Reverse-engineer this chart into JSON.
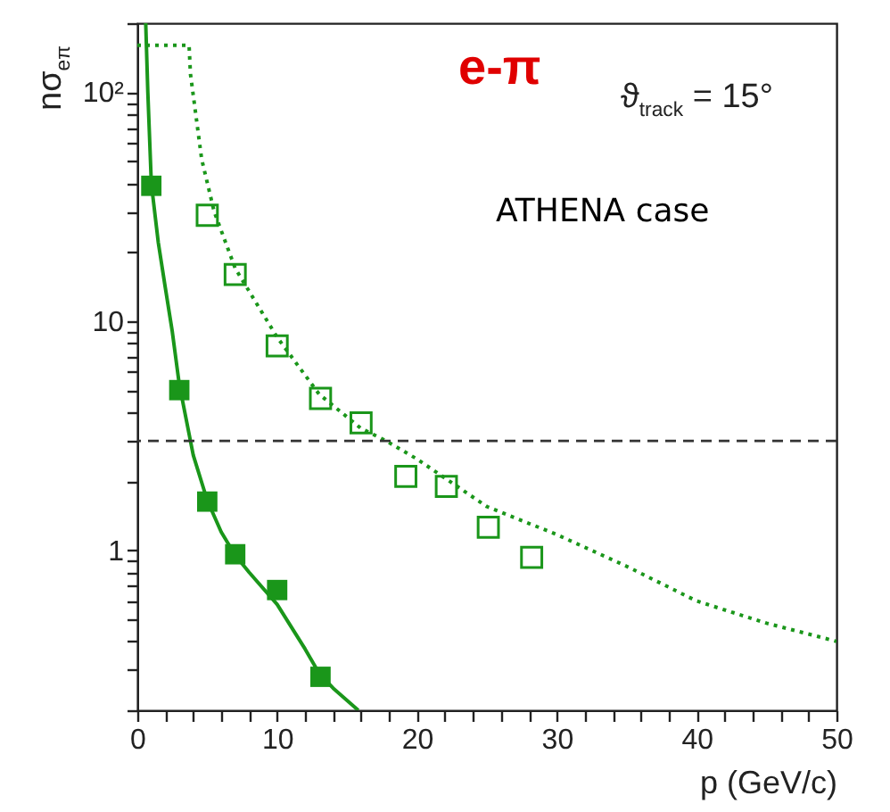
{
  "chart_data": {
    "type": "scatter",
    "xlabel": "p (GeV/c)",
    "ylabel": "nσ$_{eπ}$",
    "annotations": [
      "e-π",
      "ϑ$_{track}$ = 15°",
      "ATHENA case"
    ],
    "xlim": [
      0,
      50
    ],
    "ylim": [
      0.2,
      200
    ],
    "log": "y",
    "grid": false,
    "xticks": [
      0,
      {
        "value": 2,
        "label": null
      },
      {
        "value": 4,
        "label": null
      },
      {
        "value": 6,
        "label": null
      },
      {
        "value": 8,
        "label": null
      },
      10,
      {
        "value": 12,
        "label": null
      },
      {
        "value": 14,
        "label": null
      },
      {
        "value": 16,
        "label": null
      },
      {
        "value": 18,
        "label": null
      },
      20,
      {
        "value": 22,
        "label": null
      },
      {
        "value": 24,
        "label": null
      },
      {
        "value": 26,
        "label": null
      },
      {
        "value": 28,
        "label": null
      },
      30,
      {
        "value": 32,
        "label": null
      },
      {
        "value": 34,
        "label": null
      },
      {
        "value": 36,
        "label": null
      },
      {
        "value": 38,
        "label": null
      },
      40,
      {
        "value": 42,
        "label": null
      },
      {
        "value": 44,
        "label": null
      },
      {
        "value": 46,
        "label": null
      },
      {
        "value": 48,
        "label": null
      },
      50
    ],
    "yticks": [
      {
        "value": 0.2,
        "label": null
      },
      {
        "value": 0.3,
        "label": null
      },
      {
        "value": 0.4,
        "label": null
      },
      {
        "value": 0.5,
        "label": null
      },
      {
        "value": 0.6,
        "label": null
      },
      {
        "value": 0.7,
        "label": null
      },
      {
        "value": 0.8,
        "label": null
      },
      {
        "value": 0.9,
        "label": null
      },
      1,
      {
        "value": 2,
        "label": null
      },
      {
        "value": 3,
        "label": null
      },
      {
        "value": 4,
        "label": null
      },
      {
        "value": 5,
        "label": null
      },
      {
        "value": 6,
        "label": null
      },
      {
        "value": 7,
        "label": null
      },
      {
        "value": 8,
        "label": null
      },
      {
        "value": 9,
        "label": null
      },
      10,
      {
        "value": 20,
        "label": null
      },
      {
        "value": 30,
        "label": null
      },
      {
        "value": 40,
        "label": null
      },
      {
        "value": 50,
        "label": null
      },
      {
        "value": 60,
        "label": null
      },
      {
        "value": 70,
        "label": null
      },
      {
        "value": 80,
        "label": null
      },
      {
        "value": 90,
        "label": null
      },
      {
        "value": 100,
        "label": "10²"
      },
      {
        "value": 200,
        "label": null
      }
    ],
    "ref_lines": [
      {
        "axis": "y",
        "value": 3,
        "color": "#333333",
        "line_style": "dashed"
      }
    ],
    "series": [
      {
        "type": "line",
        "color": "#1a961a",
        "line_style": "solid",
        "marker": "none",
        "x": [
          0.6,
          0.75,
          1,
          1.5,
          2,
          2.5,
          3,
          4,
          5,
          6,
          7,
          8,
          10,
          12,
          13,
          14,
          15.8
        ],
        "values": [
          200,
          100,
          40,
          22,
          14,
          9,
          5.3,
          2.6,
          1.65,
          1.2,
          0.95,
          0.8,
          0.58,
          0.37,
          0.29,
          0.25,
          0.2
        ]
      },
      {
        "type": "line",
        "color": "#1a961a",
        "line_style": "dotted",
        "marker": "none",
        "x": [
          0,
          3.7,
          3.8,
          4.6,
          5.5,
          7,
          10,
          13,
          16,
          17.8,
          20,
          25,
          30,
          35,
          40,
          45,
          50
        ],
        "values": [
          160,
          160,
          120,
          51,
          30,
          17,
          8.5,
          4.8,
          3.4,
          3,
          2.5,
          1.55,
          1.17,
          0.85,
          0.6,
          0.48,
          0.4
        ]
      },
      {
        "color": "#1a961a",
        "marker": "square",
        "x": [
          1,
          3,
          5,
          7,
          10,
          13.1
        ],
        "values": [
          39,
          5,
          1.63,
          0.96,
          0.67,
          0.28
        ]
      },
      {
        "color": "#1a961a",
        "marker": "square",
        "x": [
          5,
          7,
          10,
          13.1,
          16,
          19.2,
          22.1,
          25.1,
          28.2
        ],
        "values": [
          29,
          16,
          7.8,
          4.6,
          3.6,
          2.1,
          1.9,
          1.26,
          0.93
        ]
      }
    ]
  }
}
